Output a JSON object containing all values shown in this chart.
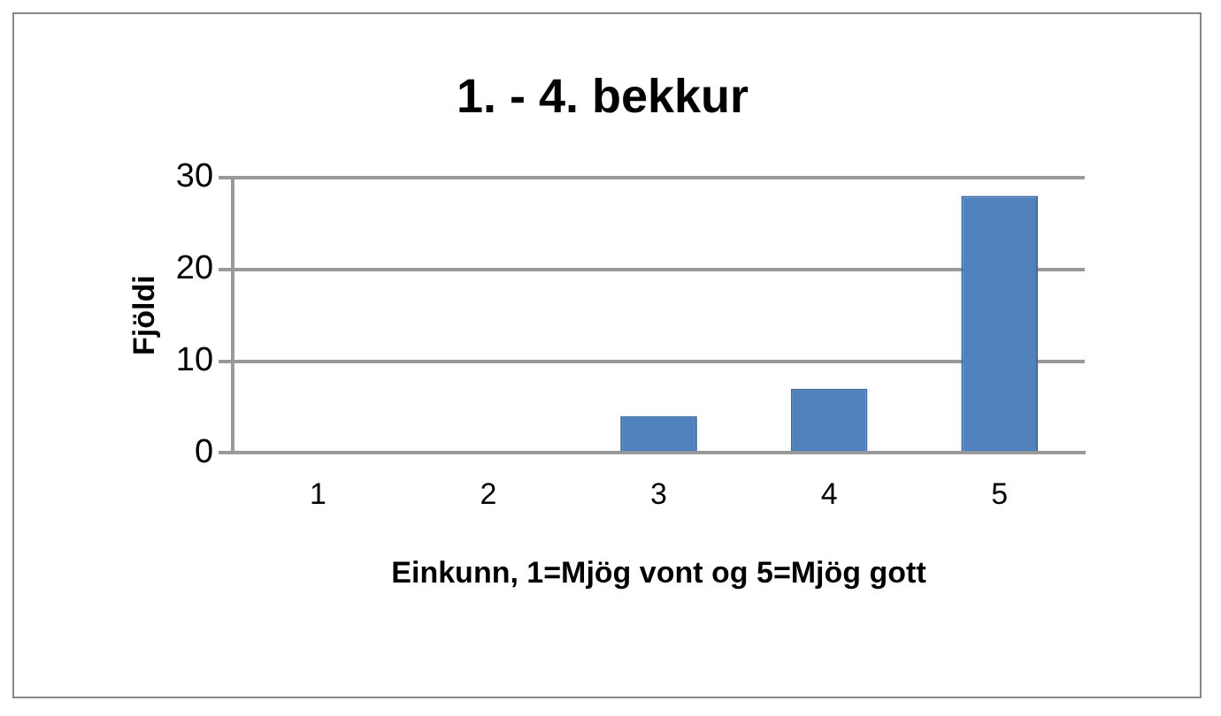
{
  "chart_data": {
    "type": "bar",
    "title": "1. - 4. bekkur",
    "xlabel": "Einkunn, 1=Mjög vont og 5=Mjög gott",
    "ylabel": "Fjöldi",
    "categories": [
      "1",
      "2",
      "3",
      "4",
      "5"
    ],
    "values": [
      0,
      0,
      4,
      7,
      28
    ],
    "color": "#4f81bd",
    "ylim": [
      0,
      30
    ],
    "yticks": [
      0,
      10,
      20,
      30
    ],
    "grid": "y",
    "legend": false
  }
}
